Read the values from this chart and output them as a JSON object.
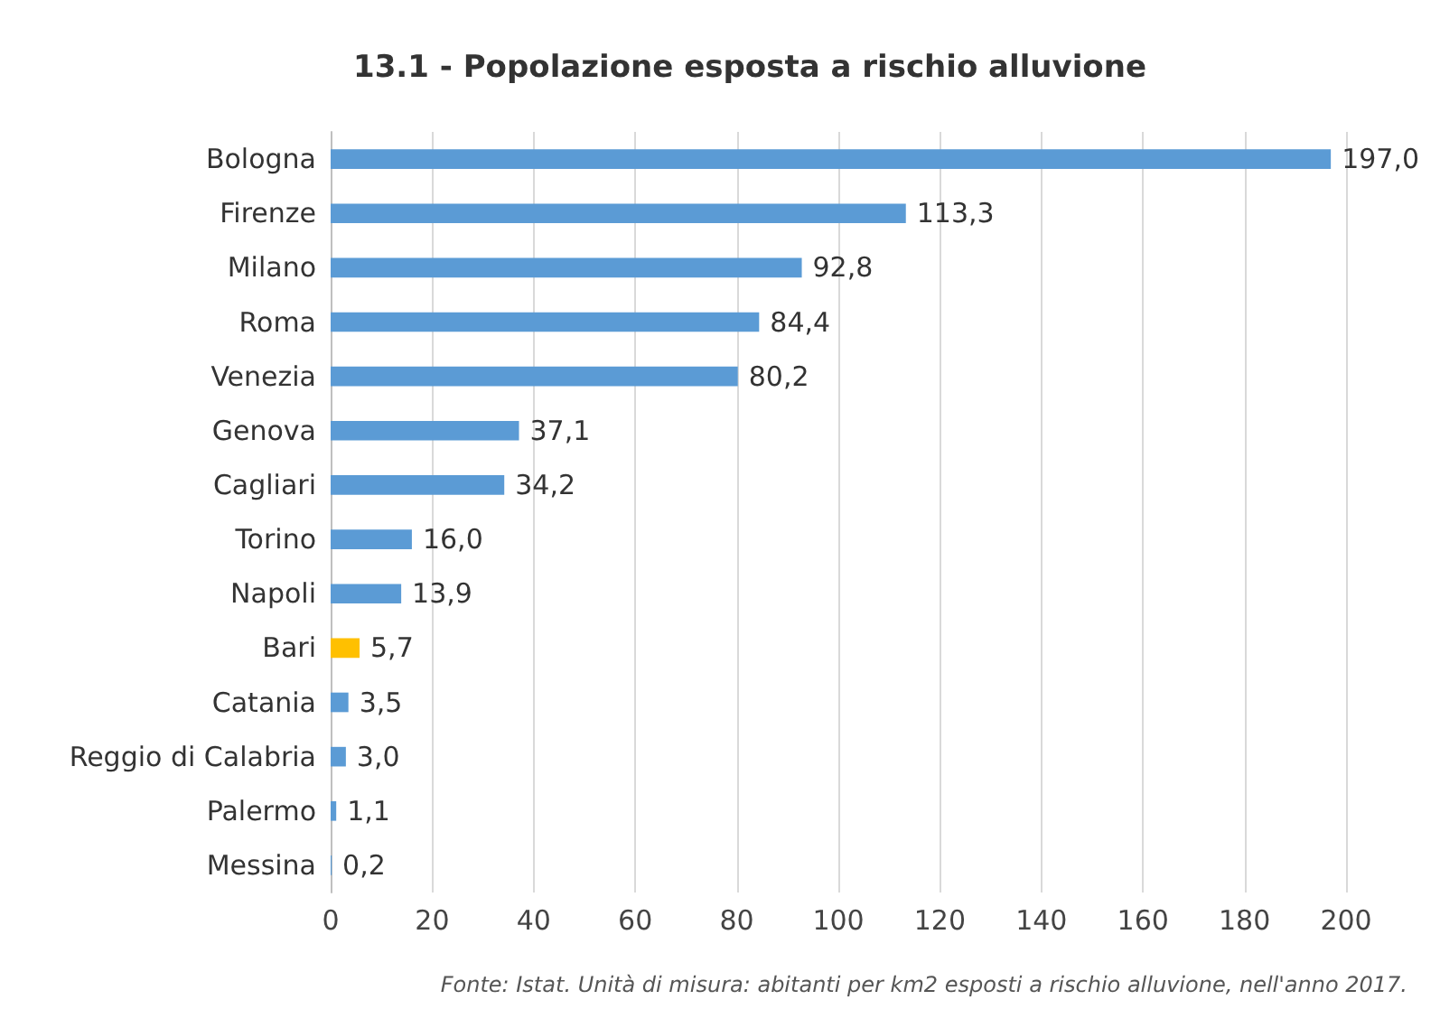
{
  "chart_data": {
    "type": "bar",
    "orientation": "horizontal",
    "title": "13.1 - Popolazione esposta a rischio alluvione",
    "categories": [
      "Bologna",
      "Firenze",
      "Milano",
      "Roma",
      "Venezia",
      "Genova",
      "Cagliari",
      "Torino",
      "Napoli",
      "Bari",
      "Catania",
      "Reggio di Calabria",
      "Palermo",
      "Messina"
    ],
    "values": [
      197.0,
      113.3,
      92.8,
      84.4,
      80.2,
      37.1,
      34.2,
      16.0,
      13.9,
      5.7,
      3.5,
      3.0,
      1.1,
      0.2
    ],
    "colors": [
      "#5b9bd5",
      "#5b9bd5",
      "#5b9bd5",
      "#5b9bd5",
      "#5b9bd5",
      "#5b9bd5",
      "#5b9bd5",
      "#5b9bd5",
      "#5b9bd5",
      "#ffc000",
      "#5b9bd5",
      "#5b9bd5",
      "#5b9bd5",
      "#5b9bd5"
    ],
    "value_labels": [
      "197,0",
      "113,3",
      "92,8",
      "84,4",
      "80,2",
      "37,1",
      "34,2",
      "16,0",
      "13,9",
      "5,7",
      "3,5",
      "3,0",
      "1,1",
      "0,2"
    ],
    "xlim": [
      0,
      200
    ],
    "xticks": [
      0,
      20,
      40,
      60,
      80,
      100,
      120,
      140,
      160,
      180,
      200
    ],
    "grid": "x",
    "annotations": [
      "Fonte: Istat. Unità di misura: abitanti per km2 esposti a rischio alluvione, nell'anno 2017."
    ]
  }
}
